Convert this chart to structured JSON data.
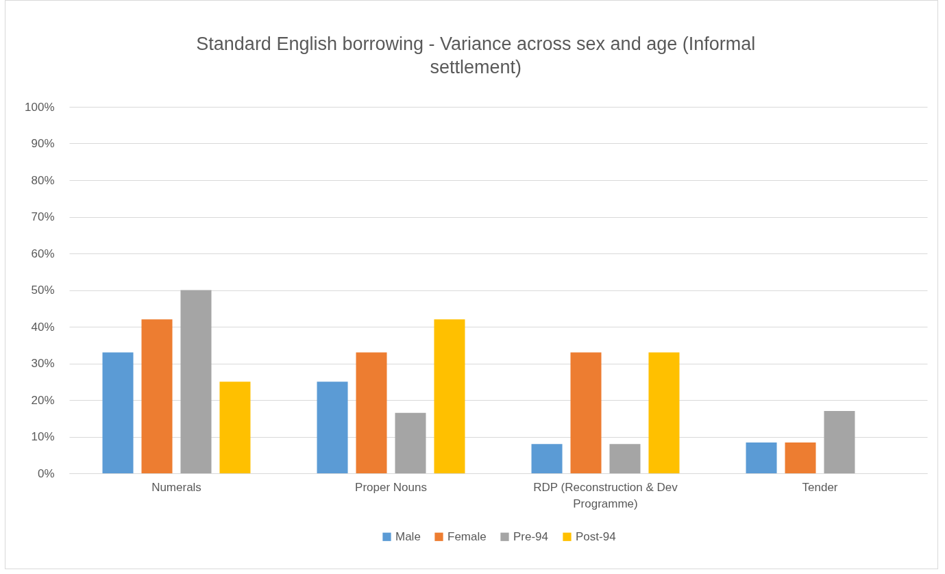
{
  "chart_data": {
    "type": "bar",
    "title": "Standard English borrowing - Variance across sex and age (Informal settlement)",
    "categories": [
      "Numerals",
      "Proper Nouns",
      "RDP (Reconstruction & Dev Programme)",
      "Tender"
    ],
    "series": [
      {
        "name": "Male",
        "color": "#5b9bd5",
        "values": [
          33,
          25,
          8,
          8.4
        ]
      },
      {
        "name": "Female",
        "color": "#ed7d31",
        "values": [
          42,
          33,
          33,
          8.4
        ]
      },
      {
        "name": "Pre-94",
        "color": "#a5a5a5",
        "values": [
          50,
          16.5,
          8,
          17
        ]
      },
      {
        "name": "Post-94",
        "color": "#ffc000",
        "values": [
          25,
          42,
          33,
          null
        ]
      }
    ],
    "ylim": [
      0,
      100
    ],
    "yticks": [
      {
        "value": 0,
        "label": "0%"
      },
      {
        "value": 10,
        "label": "10%"
      },
      {
        "value": 20,
        "label": "20%"
      },
      {
        "value": 30,
        "label": "30%"
      },
      {
        "value": 40,
        "label": "40%"
      },
      {
        "value": 50,
        "label": "50%"
      },
      {
        "value": 60,
        "label": "60%"
      },
      {
        "value": 70,
        "label": "70%"
      },
      {
        "value": 80,
        "label": "80%"
      },
      {
        "value": 90,
        "label": "90%"
      },
      {
        "value": 100,
        "label": "100%"
      }
    ],
    "grid": "y",
    "legend": "bottom"
  }
}
